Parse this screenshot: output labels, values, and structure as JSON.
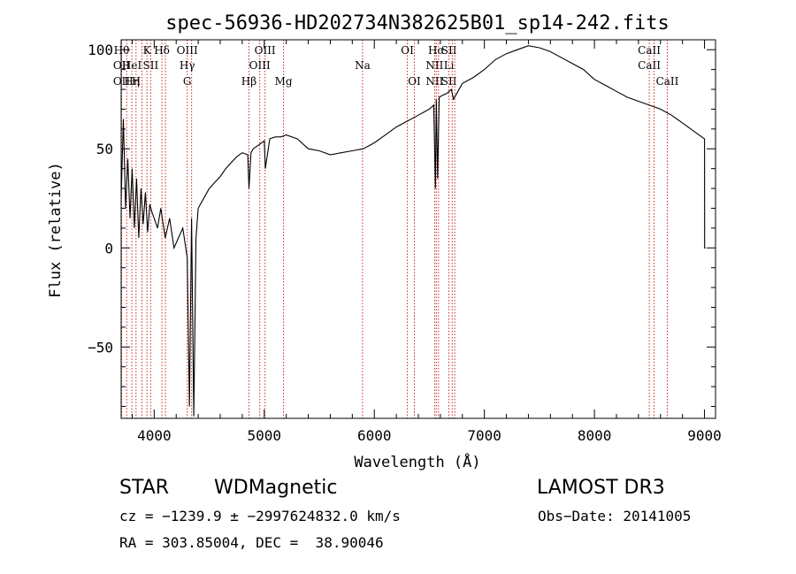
{
  "chart_data": {
    "type": "line",
    "title": "spec-56936-HD202734N382625B01_sp14-242.fits",
    "xlabel": "Wavelength (Å)",
    "ylabel": "Flux (relative)",
    "xlim": [
      3700,
      9100
    ],
    "ylim": [
      -86,
      105
    ],
    "xticks": [
      4000,
      5000,
      6000,
      7000,
      8000,
      9000
    ],
    "yticks": [
      -50,
      0,
      50,
      100
    ],
    "grid": false,
    "line_color": "#000000",
    "marker_color": "#cc2a2a",
    "spectrum": {
      "x": [
        3700,
        3720,
        3740,
        3760,
        3780,
        3800,
        3820,
        3840,
        3860,
        3880,
        3900,
        3920,
        3940,
        3960,
        3980,
        4000,
        4030,
        4060,
        4100,
        4140,
        4180,
        4220,
        4260,
        4300,
        4320,
        4340,
        4360,
        4380,
        4400,
        4450,
        4500,
        4550,
        4600,
        4650,
        4700,
        4750,
        4800,
        4850,
        4861,
        4880,
        4900,
        4950,
        5000,
        5010,
        5050,
        5100,
        5150,
        5200,
        5300,
        5400,
        5500,
        5600,
        5700,
        5800,
        5900,
        6000,
        6100,
        6200,
        6300,
        6400,
        6500,
        6540,
        6555,
        6563,
        6575,
        6590,
        6620,
        6660,
        6700,
        6720,
        6800,
        6900,
        7000,
        7100,
        7200,
        7300,
        7400,
        7500,
        7600,
        7700,
        7800,
        7900,
        8000,
        8100,
        8200,
        8300,
        8400,
        8500,
        8600,
        8700,
        8800,
        8900,
        8950,
        9000,
        9001,
        9010
      ],
      "y": [
        25,
        65,
        20,
        45,
        15,
        40,
        10,
        35,
        5,
        30,
        12,
        28,
        8,
        22,
        18,
        15,
        10,
        20,
        5,
        15,
        0,
        5,
        10,
        -5,
        -80,
        15,
        -85,
        5,
        20,
        25,
        30,
        33,
        36,
        40,
        43,
        46,
        48,
        47,
        30,
        48,
        50,
        52,
        54,
        40,
        55,
        56,
        56,
        57,
        55,
        50,
        49,
        47,
        48,
        49,
        50,
        53,
        57,
        61,
        64,
        67,
        70,
        72,
        30,
        75,
        35,
        76,
        77,
        78,
        80,
        75,
        83,
        86,
        90,
        95,
        98,
        100,
        102,
        101,
        99,
        96,
        93,
        90,
        85,
        82,
        79,
        76,
        74,
        72,
        70,
        67,
        63,
        59,
        57,
        55,
        0,
        0
      ]
    },
    "lines": [
      {
        "x": 3704,
        "upper": "Hθ",
        "lower": "OII",
        "lower2": "OII"
      },
      {
        "x": 3750,
        "upper": "",
        "lower": "",
        "lower2": ""
      },
      {
        "x": 3797,
        "upper": "",
        "lower": "HeI",
        "lower2": "Hη"
      },
      {
        "x": 3835,
        "upper": "",
        "lower": "",
        "lower2": "H"
      },
      {
        "x": 3889,
        "upper": "",
        "lower": "",
        "lower2": ""
      },
      {
        "x": 3934,
        "upper": "K",
        "lower": "",
        "lower2": ""
      },
      {
        "x": 3968,
        "upper": "",
        "lower": "SII",
        "lower2": ""
      },
      {
        "x": 4070,
        "upper": "Hδ",
        "lower": "",
        "lower2": ""
      },
      {
        "x": 4102,
        "upper": "",
        "lower": "",
        "lower2": ""
      },
      {
        "x": 4300,
        "upper": "OIII",
        "lower": "Hγ",
        "lower2": "G"
      },
      {
        "x": 4340,
        "upper": "",
        "lower": "",
        "lower2": ""
      },
      {
        "x": 4861,
        "upper": "",
        "lower": "",
        "lower2": "Hβ"
      },
      {
        "x": 4959,
        "upper": "",
        "lower": "OIII",
        "lower2": ""
      },
      {
        "x": 5007,
        "upper": "OIII",
        "lower": "",
        "lower2": ""
      },
      {
        "x": 5175,
        "upper": "",
        "lower": "",
        "lower2": "Mg"
      },
      {
        "x": 5893,
        "upper": "",
        "lower": "Na",
        "lower2": ""
      },
      {
        "x": 6300,
        "upper": "OI",
        "lower": "",
        "lower2": ""
      },
      {
        "x": 6364,
        "upper": "",
        "lower": "",
        "lower2": "OI"
      },
      {
        "x": 6548,
        "upper": "",
        "lower": "NII",
        "lower2": "NII"
      },
      {
        "x": 6563,
        "upper": "Hα",
        "lower": "",
        "lower2": ""
      },
      {
        "x": 6583,
        "upper": "",
        "lower": "",
        "lower2": ""
      },
      {
        "x": 6678,
        "upper": "SII",
        "lower": "Li",
        "lower2": "SII"
      },
      {
        "x": 6708,
        "upper": "",
        "lower": "",
        "lower2": ""
      },
      {
        "x": 6731,
        "upper": "",
        "lower": "",
        "lower2": ""
      },
      {
        "x": 8498,
        "upper": "CaII",
        "lower": "CaII",
        "lower2": ""
      },
      {
        "x": 8542,
        "upper": "",
        "lower": "",
        "lower2": ""
      },
      {
        "x": 8662,
        "upper": "",
        "lower": "",
        "lower2": "CaII"
      }
    ]
  },
  "info": {
    "object_class": "STAR",
    "subclass": "WDMagnetic",
    "survey": "LAMOST DR3",
    "cz_line": "cz = −1239.9 ± −2997624832.0 km/s",
    "obs_date": "Obs−Date: 20141005",
    "radec_line": "RA = 303.85004, DEC =  38.90046"
  }
}
